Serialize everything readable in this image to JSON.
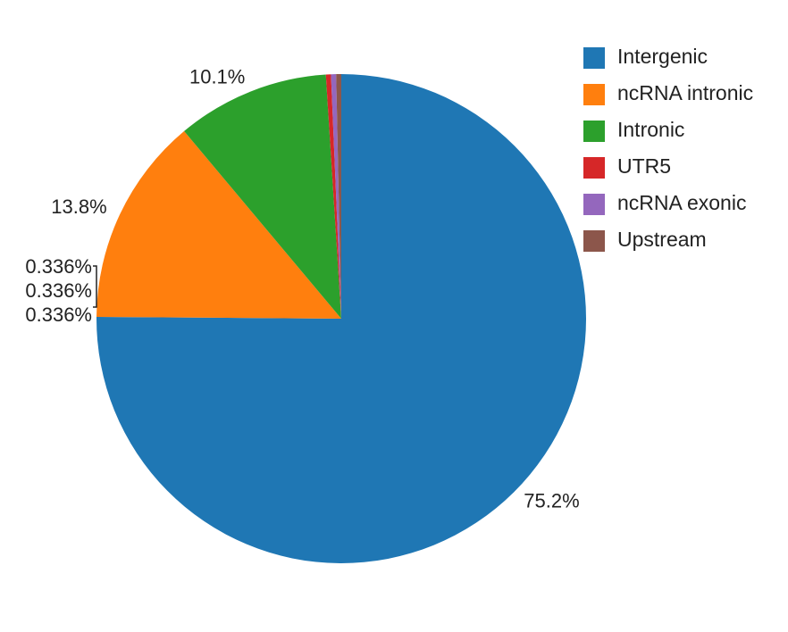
{
  "chart_data": {
    "type": "pie",
    "title": "",
    "legend_position": "top-right",
    "slices": [
      {
        "name": "Intergenic",
        "value": 75.2,
        "label": "75.2%",
        "color": "#1f77b4"
      },
      {
        "name": "ncRNA intronic",
        "value": 13.8,
        "label": "13.8%",
        "color": "#ff7f0e"
      },
      {
        "name": "Intronic",
        "value": 10.1,
        "label": "10.1%",
        "color": "#2ca02c"
      },
      {
        "name": "UTR5",
        "value": 0.336,
        "label": "0.336%",
        "color": "#d62728"
      },
      {
        "name": "ncRNA exonic",
        "value": 0.336,
        "label": "0.336%",
        "color": "#9467bd"
      },
      {
        "name": "Upstream",
        "value": 0.336,
        "label": "0.336%",
        "color": "#8c564b"
      }
    ]
  }
}
